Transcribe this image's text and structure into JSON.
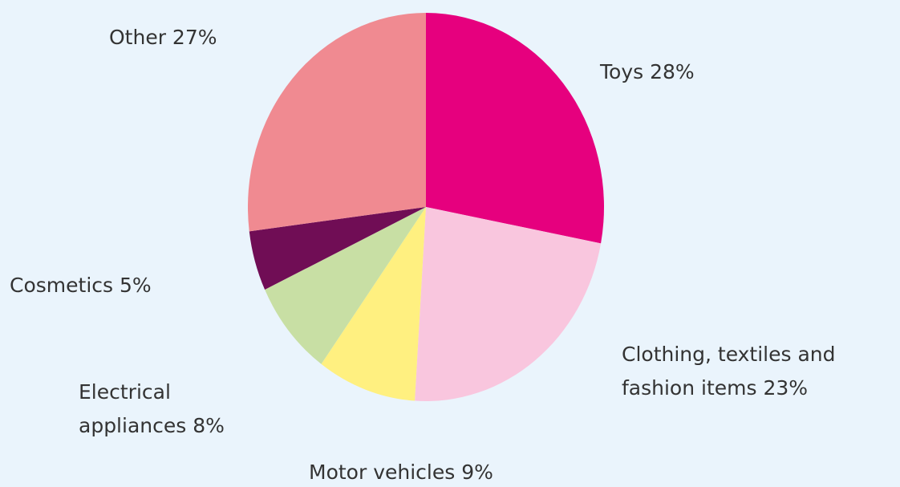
{
  "chart_data": {
    "type": "pie",
    "labels": [
      [
        "Toys 28%"
      ],
      [
        "Clothing, textiles and",
        "fashion items 23%"
      ],
      [
        "Motor vehicles 9%"
      ],
      [
        "Electrical",
        "appliances 8%"
      ],
      [
        "Cosmetics 5%"
      ],
      [
        "Other 27%"
      ]
    ],
    "values": [
      28,
      23,
      9,
      8,
      5,
      27
    ],
    "colors": [
      "#e6007e",
      "#f9c6de",
      "#fff080",
      "#c8dfa4",
      "#700d55",
      "#f08a91"
    ]
  }
}
